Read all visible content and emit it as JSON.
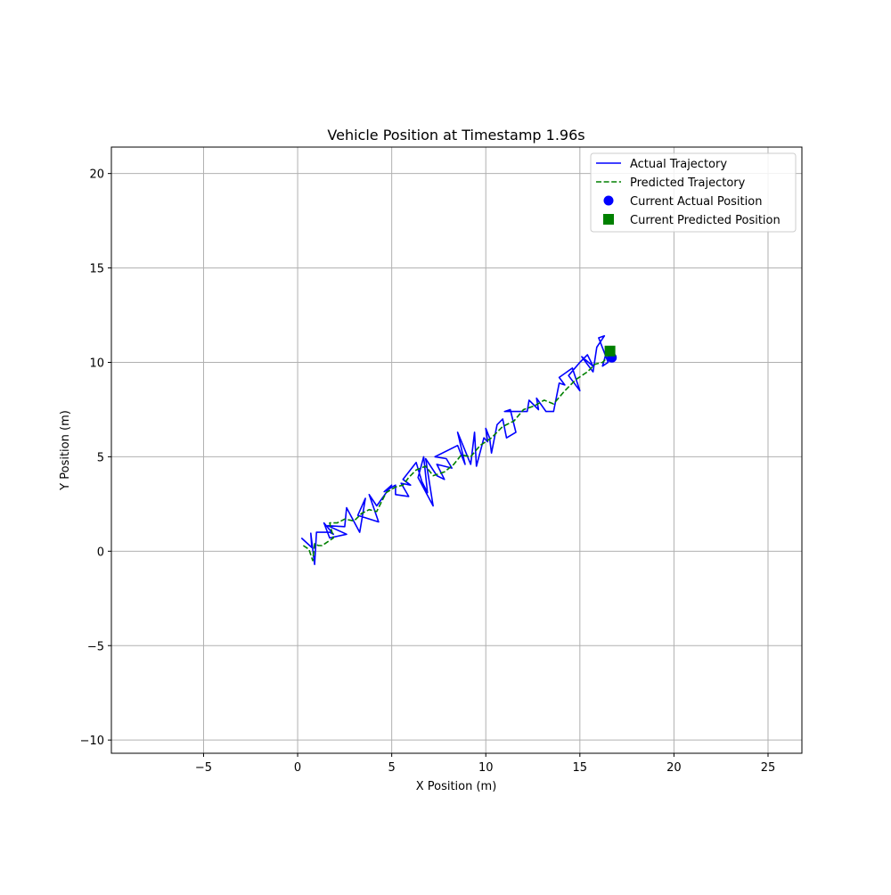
{
  "chart_data": {
    "type": "line",
    "title": "Vehicle Position at Timestamp 1.96s",
    "xlabel": "X Position (m)",
    "ylabel": "Y Position (m)",
    "xlim": [
      -9.9,
      26.8
    ],
    "ylim": [
      -10.7,
      21.4
    ],
    "xticks": [
      -5,
      0,
      5,
      10,
      15,
      20,
      25
    ],
    "yticks": [
      -10,
      -5,
      0,
      5,
      10,
      15,
      20
    ],
    "grid": true,
    "legend_position": "top-right",
    "series": [
      {
        "name": "Actual Trajectory",
        "style": "solid",
        "color": "#0000ff",
        "x": [
          0.2,
          0.75,
          0.7,
          0.9,
          1.0,
          1.7,
          1.9,
          1.4,
          1.7,
          2.6,
          1.6,
          2.5,
          2.6,
          3.3,
          3.6,
          3.2,
          4.3,
          3.8,
          4.2,
          5.0,
          4.6,
          5.2,
          5.2,
          5.9,
          5.5,
          6.0,
          5.6,
          6.3,
          6.6,
          6.9,
          6.7,
          6.4,
          7.2,
          6.8,
          7.4,
          7.8,
          7.4,
          8.2,
          7.9,
          7.3,
          8.5,
          8.9,
          8.5,
          9.2,
          9.4,
          9.5,
          9.9,
          10.1,
          10.0,
          10.2,
          10.3,
          10.6,
          10.9,
          11.1,
          11.6,
          11.3,
          11.0,
          12.2,
          12.3,
          12.8,
          12.7,
          13.2,
          13.6,
          13.9,
          14.2,
          13.9,
          14.6,
          15.0,
          14.4,
          15.0,
          15.4,
          15.7,
          15.1,
          15.7,
          15.9,
          16.3,
          16.0,
          16.5,
          16.2,
          16.4,
          16.7
        ],
        "y": [
          0.7,
          0.2,
          0.95,
          -0.7,
          1.0,
          1.0,
          0.9,
          1.5,
          0.7,
          0.9,
          1.35,
          1.3,
          2.3,
          1.0,
          2.8,
          1.9,
          1.55,
          3.0,
          2.4,
          3.5,
          3.15,
          3.5,
          3.0,
          2.9,
          3.6,
          3.5,
          3.8,
          4.7,
          3.7,
          3.1,
          5.0,
          3.9,
          2.4,
          4.9,
          4.0,
          3.8,
          4.6,
          4.4,
          4.9,
          5.0,
          5.6,
          4.6,
          6.3,
          4.6,
          6.3,
          4.5,
          6.0,
          5.8,
          6.5,
          6.0,
          5.2,
          6.7,
          7.0,
          6.0,
          6.3,
          7.5,
          7.4,
          7.4,
          8.0,
          7.5,
          8.1,
          7.4,
          7.4,
          8.9,
          8.8,
          9.2,
          9.7,
          8.5,
          9.3,
          10.0,
          10.4,
          9.8,
          10.3,
          9.5,
          10.8,
          11.4,
          11.3,
          10.0,
          9.8,
          10.5,
          10.25
        ]
      },
      {
        "name": "Predicted Trajectory",
        "style": "dashed",
        "color": "#008000",
        "x": [
          0.3,
          0.6,
          0.8,
          0.9,
          1.1,
          1.3,
          1.9,
          1.7,
          2.1,
          2.5,
          3.0,
          3.4,
          3.8,
          4.2,
          4.7,
          5.2,
          5.6,
          5.9,
          6.3,
          6.8,
          7.2,
          7.8,
          8.3,
          8.7,
          9.2,
          9.7,
          10.3,
          10.9,
          11.5,
          12.0,
          12.6,
          13.1,
          13.6,
          14.2,
          14.8,
          15.4,
          15.8,
          16.2,
          16.5,
          16.6
        ],
        "y": [
          0.3,
          0.1,
          -0.5,
          0.4,
          0.3,
          0.3,
          0.7,
          1.5,
          1.5,
          1.7,
          1.6,
          2.0,
          2.2,
          2.1,
          3.1,
          3.4,
          3.5,
          3.9,
          4.3,
          4.5,
          4.0,
          4.2,
          4.6,
          5.1,
          5.0,
          5.6,
          6.0,
          6.6,
          6.9,
          7.5,
          7.7,
          8.0,
          7.8,
          8.5,
          9.1,
          9.5,
          9.9,
          10.0,
          10.3,
          10.6
        ]
      }
    ],
    "points": [
      {
        "name": "Current Actual Position",
        "marker": "circle",
        "color": "#0000ff",
        "x": 16.7,
        "y": 10.25
      },
      {
        "name": "Current Predicted Position",
        "marker": "square",
        "color": "#008000",
        "x": 16.6,
        "y": 10.6
      }
    ]
  }
}
